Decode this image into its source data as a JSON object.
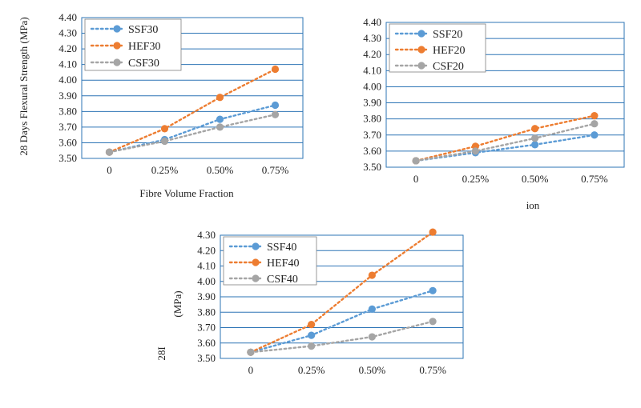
{
  "chart_data": [
    {
      "type": "line",
      "x": [
        "0",
        "0.25%",
        "0.50%",
        "0.75%"
      ],
      "xlabel": "Fibre Volume Fraction",
      "ylabel": "28 Days Flexural Strength (MPa)",
      "ylim": [
        3.5,
        4.4
      ],
      "ytick_step": 0.1,
      "grid": true,
      "legend_position": "top-left",
      "series": [
        {
          "name": "SSF30",
          "color": "#5b9bd5",
          "values": [
            3.54,
            3.62,
            3.75,
            3.84
          ]
        },
        {
          "name": "HEF30",
          "color": "#ed7d31",
          "values": [
            3.54,
            3.69,
            3.89,
            4.07
          ]
        },
        {
          "name": "CSF30",
          "color": "#a5a5a5",
          "values": [
            3.54,
            3.61,
            3.7,
            3.78
          ]
        }
      ]
    },
    {
      "type": "line",
      "x": [
        "0",
        "0.25%",
        "0.50%",
        "0.75%"
      ],
      "xlabel": "ion",
      "ylabel": "",
      "ylim": [
        3.5,
        4.4
      ],
      "ytick_step": 0.1,
      "grid": true,
      "legend_position": "top-left",
      "series": [
        {
          "name": "SSF20",
          "color": "#5b9bd5",
          "values": [
            3.54,
            3.59,
            3.64,
            3.7
          ]
        },
        {
          "name": "HEF20",
          "color": "#ed7d31",
          "values": [
            3.54,
            3.63,
            3.74,
            3.82
          ]
        },
        {
          "name": "CSF20",
          "color": "#a5a5a5",
          "values": [
            3.54,
            3.6,
            3.68,
            3.77
          ]
        }
      ]
    },
    {
      "type": "line",
      "x": [
        "0",
        "0.25%",
        "0.50%",
        "0.75%"
      ],
      "xlabel": "",
      "ylabel": "",
      "ylim": [
        3.5,
        4.3
      ],
      "ytick_step": 0.1,
      "grid": true,
      "legend_position": "top-left",
      "series": [
        {
          "name": "SSF40",
          "color": "#5b9bd5",
          "values": [
            3.54,
            3.65,
            3.82,
            3.94
          ]
        },
        {
          "name": "HEF40",
          "color": "#ed7d31",
          "values": [
            3.54,
            3.72,
            4.04,
            4.32
          ]
        },
        {
          "name": "CSF40",
          "color": "#a5a5a5",
          "values": [
            3.54,
            3.58,
            3.64,
            3.74
          ]
        }
      ]
    }
  ],
  "fragments": {
    "mpa": "(MPa)",
    "days": "28I"
  }
}
